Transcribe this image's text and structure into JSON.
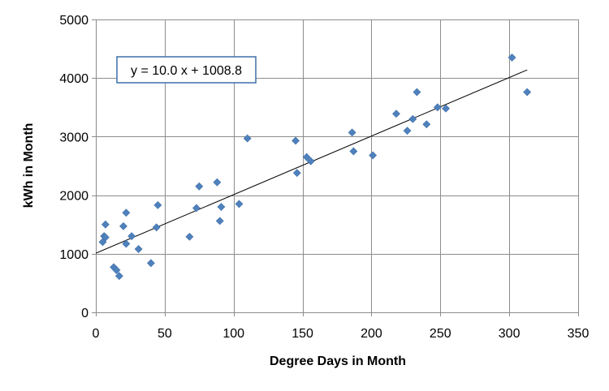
{
  "chart_data": {
    "type": "scatter",
    "title": "",
    "xlabel": "Degree Days in Month",
    "ylabel": "kWh in Month",
    "xlim": [
      0,
      350
    ],
    "ylim": [
      0,
      5000
    ],
    "x_ticks": [
      0,
      50,
      100,
      150,
      200,
      250,
      300,
      350
    ],
    "y_ticks": [
      0,
      1000,
      2000,
      3000,
      4000,
      5000
    ],
    "grid": true,
    "legend": "none",
    "marker_color": "#4f81bd",
    "trendline": {
      "type": "linear",
      "slope": 10.0,
      "intercept": 1008.8,
      "x_range": [
        0,
        313
      ],
      "equation_label": "y = 10.0 x + 1008.8"
    },
    "points": [
      {
        "x": 5,
        "y": 1200
      },
      {
        "x": 6,
        "y": 1300
      },
      {
        "x": 7,
        "y": 1280
      },
      {
        "x": 7,
        "y": 1500
      },
      {
        "x": 13,
        "y": 770
      },
      {
        "x": 15,
        "y": 720
      },
      {
        "x": 17,
        "y": 620
      },
      {
        "x": 20,
        "y": 1470
      },
      {
        "x": 22,
        "y": 1170
      },
      {
        "x": 22,
        "y": 1700
      },
      {
        "x": 26,
        "y": 1300
      },
      {
        "x": 31,
        "y": 1080
      },
      {
        "x": 40,
        "y": 840
      },
      {
        "x": 44,
        "y": 1450
      },
      {
        "x": 45,
        "y": 1830
      },
      {
        "x": 68,
        "y": 1290
      },
      {
        "x": 73,
        "y": 1780
      },
      {
        "x": 75,
        "y": 2150
      },
      {
        "x": 88,
        "y": 2220
      },
      {
        "x": 90,
        "y": 1560
      },
      {
        "x": 91,
        "y": 1800
      },
      {
        "x": 104,
        "y": 1850
      },
      {
        "x": 110,
        "y": 2970
      },
      {
        "x": 145,
        "y": 2930
      },
      {
        "x": 146,
        "y": 2380
      },
      {
        "x": 153,
        "y": 2650
      },
      {
        "x": 156,
        "y": 2580
      },
      {
        "x": 186,
        "y": 3070
      },
      {
        "x": 187,
        "y": 2750
      },
      {
        "x": 201,
        "y": 2680
      },
      {
        "x": 218,
        "y": 3390
      },
      {
        "x": 226,
        "y": 3100
      },
      {
        "x": 230,
        "y": 3300
      },
      {
        "x": 233,
        "y": 3760
      },
      {
        "x": 240,
        "y": 3210
      },
      {
        "x": 248,
        "y": 3500
      },
      {
        "x": 254,
        "y": 3480
      },
      {
        "x": 302,
        "y": 4350
      },
      {
        "x": 313,
        "y": 3760
      }
    ]
  }
}
